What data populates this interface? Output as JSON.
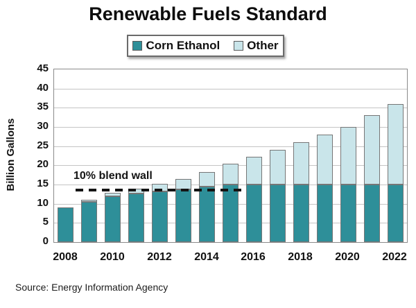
{
  "source": "Source: Energy Information Agency",
  "chart_data": {
    "type": "bar",
    "stacked": true,
    "title": "Renewable Fuels Standard",
    "ylabel": "Billion Gallons",
    "xlabel": "",
    "ylim": [
      0,
      45
    ],
    "yticks": [
      0,
      5,
      10,
      15,
      20,
      25,
      30,
      35,
      40,
      45
    ],
    "grid": "horizontal",
    "legend_position": "top-center",
    "categories": [
      "2008",
      "2009",
      "2010",
      "2011",
      "2012",
      "2013",
      "2014",
      "2015",
      "2016",
      "2017",
      "2018",
      "2019",
      "2020",
      "2021",
      "2022"
    ],
    "x_tick_labels": [
      "2008",
      "2010",
      "2012",
      "2014",
      "2016",
      "2018",
      "2020",
      "2022"
    ],
    "series": [
      {
        "name": "Corn Ethanol",
        "color": "#2E8F99",
        "values": [
          9.0,
          10.5,
          12.0,
          12.6,
          13.2,
          13.8,
          14.4,
          15.0,
          15.0,
          15.0,
          15.0,
          15.0,
          15.0,
          15.0,
          15.0
        ]
      },
      {
        "name": "Other",
        "color": "#C9E5EA",
        "values": [
          0.0,
          0.6,
          0.95,
          1.35,
          2.0,
          2.75,
          3.75,
          5.5,
          7.25,
          9.0,
          11.0,
          13.0,
          15.0,
          18.0,
          21.0
        ]
      }
    ],
    "totals": [
      9.0,
      11.1,
      12.95,
      13.95,
      15.2,
      16.55,
      18.15,
      20.5,
      22.25,
      24.0,
      26.0,
      28.0,
      30.0,
      33.0,
      36.0
    ],
    "annotation": {
      "text": "10% blend wall",
      "value": 13.5
    }
  }
}
